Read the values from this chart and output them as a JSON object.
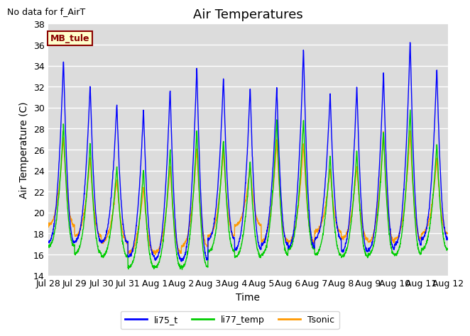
{
  "title": "Air Temperatures",
  "no_data_text": "No data for f_AirT",
  "station_label": "MB_tule",
  "xlabel": "Time",
  "ylabel": "Air Temperature (C)",
  "ylim": [
    14,
    38
  ],
  "yticks": [
    14,
    16,
    18,
    20,
    22,
    24,
    26,
    28,
    30,
    32,
    34,
    36,
    38
  ],
  "x_tick_labels": [
    "Jul 28",
    "Jul 29",
    "Jul 30",
    "Jul 31",
    "Aug 1",
    "Aug 2",
    "Aug 3",
    "Aug 4",
    "Aug 5",
    "Aug 6",
    "Aug 7",
    "Aug 8",
    "Aug 9",
    "Aug 10",
    "Aug 11",
    "Aug 12"
  ],
  "line_colors": {
    "li75_t": "#0000ff",
    "li77_temp": "#00cc00",
    "Tsonic": "#ff9900"
  },
  "legend_labels": [
    "li75_t",
    "li77_temp",
    "Tsonic"
  ],
  "bg_color": "#dcdcdc",
  "title_fontsize": 13,
  "label_fontsize": 10,
  "tick_fontsize": 9,
  "blue_peaks": [
    34.7,
    32.3,
    30.5,
    30.0,
    32.0,
    34.0,
    33.0,
    32.0,
    32.0,
    35.8,
    31.5,
    32.2,
    33.5,
    36.5,
    33.8
  ],
  "blue_mins": [
    17.2,
    17.3,
    17.2,
    15.8,
    15.5,
    15.5,
    17.5,
    16.5,
    17.0,
    16.7,
    17.5,
    16.3,
    16.5,
    17.0,
    17.5
  ],
  "green_peaks": [
    28.5,
    26.7,
    24.5,
    24.2,
    26.0,
    28.0,
    27.1,
    25.0,
    29.0,
    29.0,
    25.5,
    26.0,
    27.8,
    30.0,
    26.7
  ],
  "green_mins": [
    16.8,
    16.1,
    15.8,
    14.8,
    14.8,
    14.8,
    16.3,
    15.8,
    16.0,
    16.5,
    16.0,
    15.8,
    16.0,
    16.0,
    16.5
  ],
  "orange_peaks": [
    27.2,
    25.3,
    23.2,
    22.5,
    24.5,
    26.2,
    26.0,
    24.5,
    27.0,
    26.7,
    24.2,
    24.5,
    27.8,
    27.8,
    25.2
  ],
  "orange_mins": [
    18.8,
    17.8,
    17.2,
    16.2,
    16.2,
    16.8,
    17.8,
    18.8,
    17.3,
    17.2,
    18.2,
    17.5,
    17.2,
    17.5,
    18.0
  ]
}
